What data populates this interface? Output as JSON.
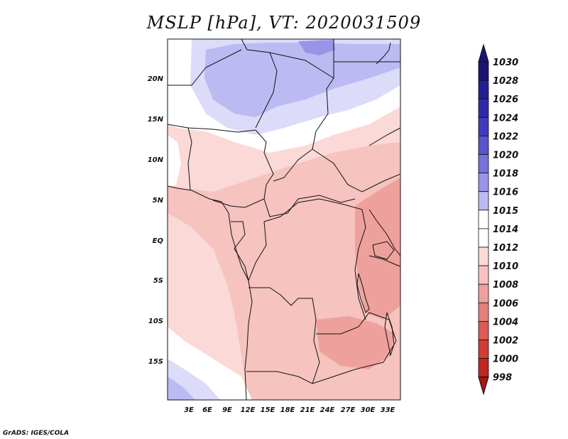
{
  "title": "MSLP [hPa], VT: 2020031509",
  "credit": "GrADS: IGES/COLA",
  "map": {
    "lon_ticks": [
      "3E",
      "6E",
      "9E",
      "12E",
      "15E",
      "18E",
      "21E",
      "24E",
      "27E",
      "30E",
      "33E"
    ],
    "lat_ticks": [
      "20N",
      "15N",
      "10N",
      "5N",
      "EQ",
      "5S",
      "10S",
      "15S"
    ],
    "ocean_color": "#fbd9d7",
    "land_color": "#f6c3bf"
  },
  "colorbar": {
    "levels": [
      {
        "label": "1030",
        "color": "#1a1570"
      },
      {
        "label": "1028",
        "color": "#231f95"
      },
      {
        "label": "1026",
        "color": "#2e2aab"
      },
      {
        "label": "1024",
        "color": "#3f3bbf"
      },
      {
        "label": "1022",
        "color": "#5854cf"
      },
      {
        "label": "1020",
        "color": "#7672dc"
      },
      {
        "label": "1018",
        "color": "#9895e8"
      },
      {
        "label": "1016",
        "color": "#bcbaf2"
      },
      {
        "label": "1015",
        "color": "#dcdbf9"
      },
      {
        "label": "1014",
        "color": "#ffffff"
      },
      {
        "label": "1012",
        "color": "#fbd9d7"
      },
      {
        "label": "1010",
        "color": "#f6c3bf"
      },
      {
        "label": "1008",
        "color": "#eea19c"
      },
      {
        "label": "1006",
        "color": "#e5807a"
      },
      {
        "label": "1004",
        "color": "#dc5b55"
      },
      {
        "label": "1002",
        "color": "#d13c36"
      },
      {
        "label": "1000",
        "color": "#c0271f"
      },
      {
        "label": "998",
        "color": "#a6170f"
      }
    ],
    "top_color": "#1a1570",
    "bottom_color": "#a6170f"
  }
}
